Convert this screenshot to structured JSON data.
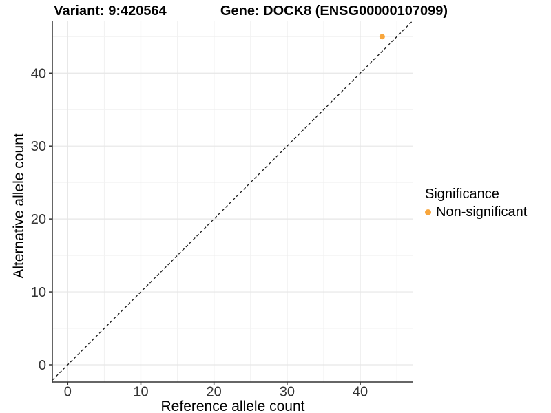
{
  "header": {
    "title_left": "Variant: 9:420564",
    "title_right": "Gene: DOCK8 (ENSG00000107099)"
  },
  "axes": {
    "x_label": "Reference allele count",
    "y_label": "Alternative allele count"
  },
  "legend": {
    "title": "Significance",
    "items": [
      {
        "label": "Non-significant",
        "color": "#F8A63C"
      }
    ]
  },
  "colors": {
    "point": "#F8A63C",
    "axis_line": "#333333",
    "tick_text": "#333333",
    "major_grid": "#e6e6e6",
    "minor_grid": "#f1f1f1",
    "reference_line": "#1a1a1a",
    "background": "#ffffff"
  },
  "chart_data": {
    "type": "scatter",
    "title": "Variant: 9:420564    Gene: DOCK8 (ENSG00000107099)",
    "xlabel": "Reference allele count",
    "ylabel": "Alternative allele count",
    "xlim": [
      -2.1,
      47.25
    ],
    "ylim": [
      -2.36,
      47.2
    ],
    "x_ticks": [
      0,
      10,
      20,
      30,
      40
    ],
    "y_ticks": [
      0,
      10,
      20,
      30,
      40
    ],
    "x_minor_ticks": [
      5,
      15,
      25,
      35,
      45
    ],
    "y_minor_ticks": [
      5,
      15,
      25,
      35,
      45
    ],
    "grid": true,
    "legend_position": "right",
    "series": [
      {
        "name": "Non-significant",
        "color": "#F8A63C",
        "points": [
          {
            "x": 43,
            "y": 45
          }
        ]
      }
    ],
    "reference_line": {
      "type": "identity",
      "slope": 1,
      "intercept": 0,
      "style": "dashed",
      "color": "#1a1a1a"
    }
  }
}
